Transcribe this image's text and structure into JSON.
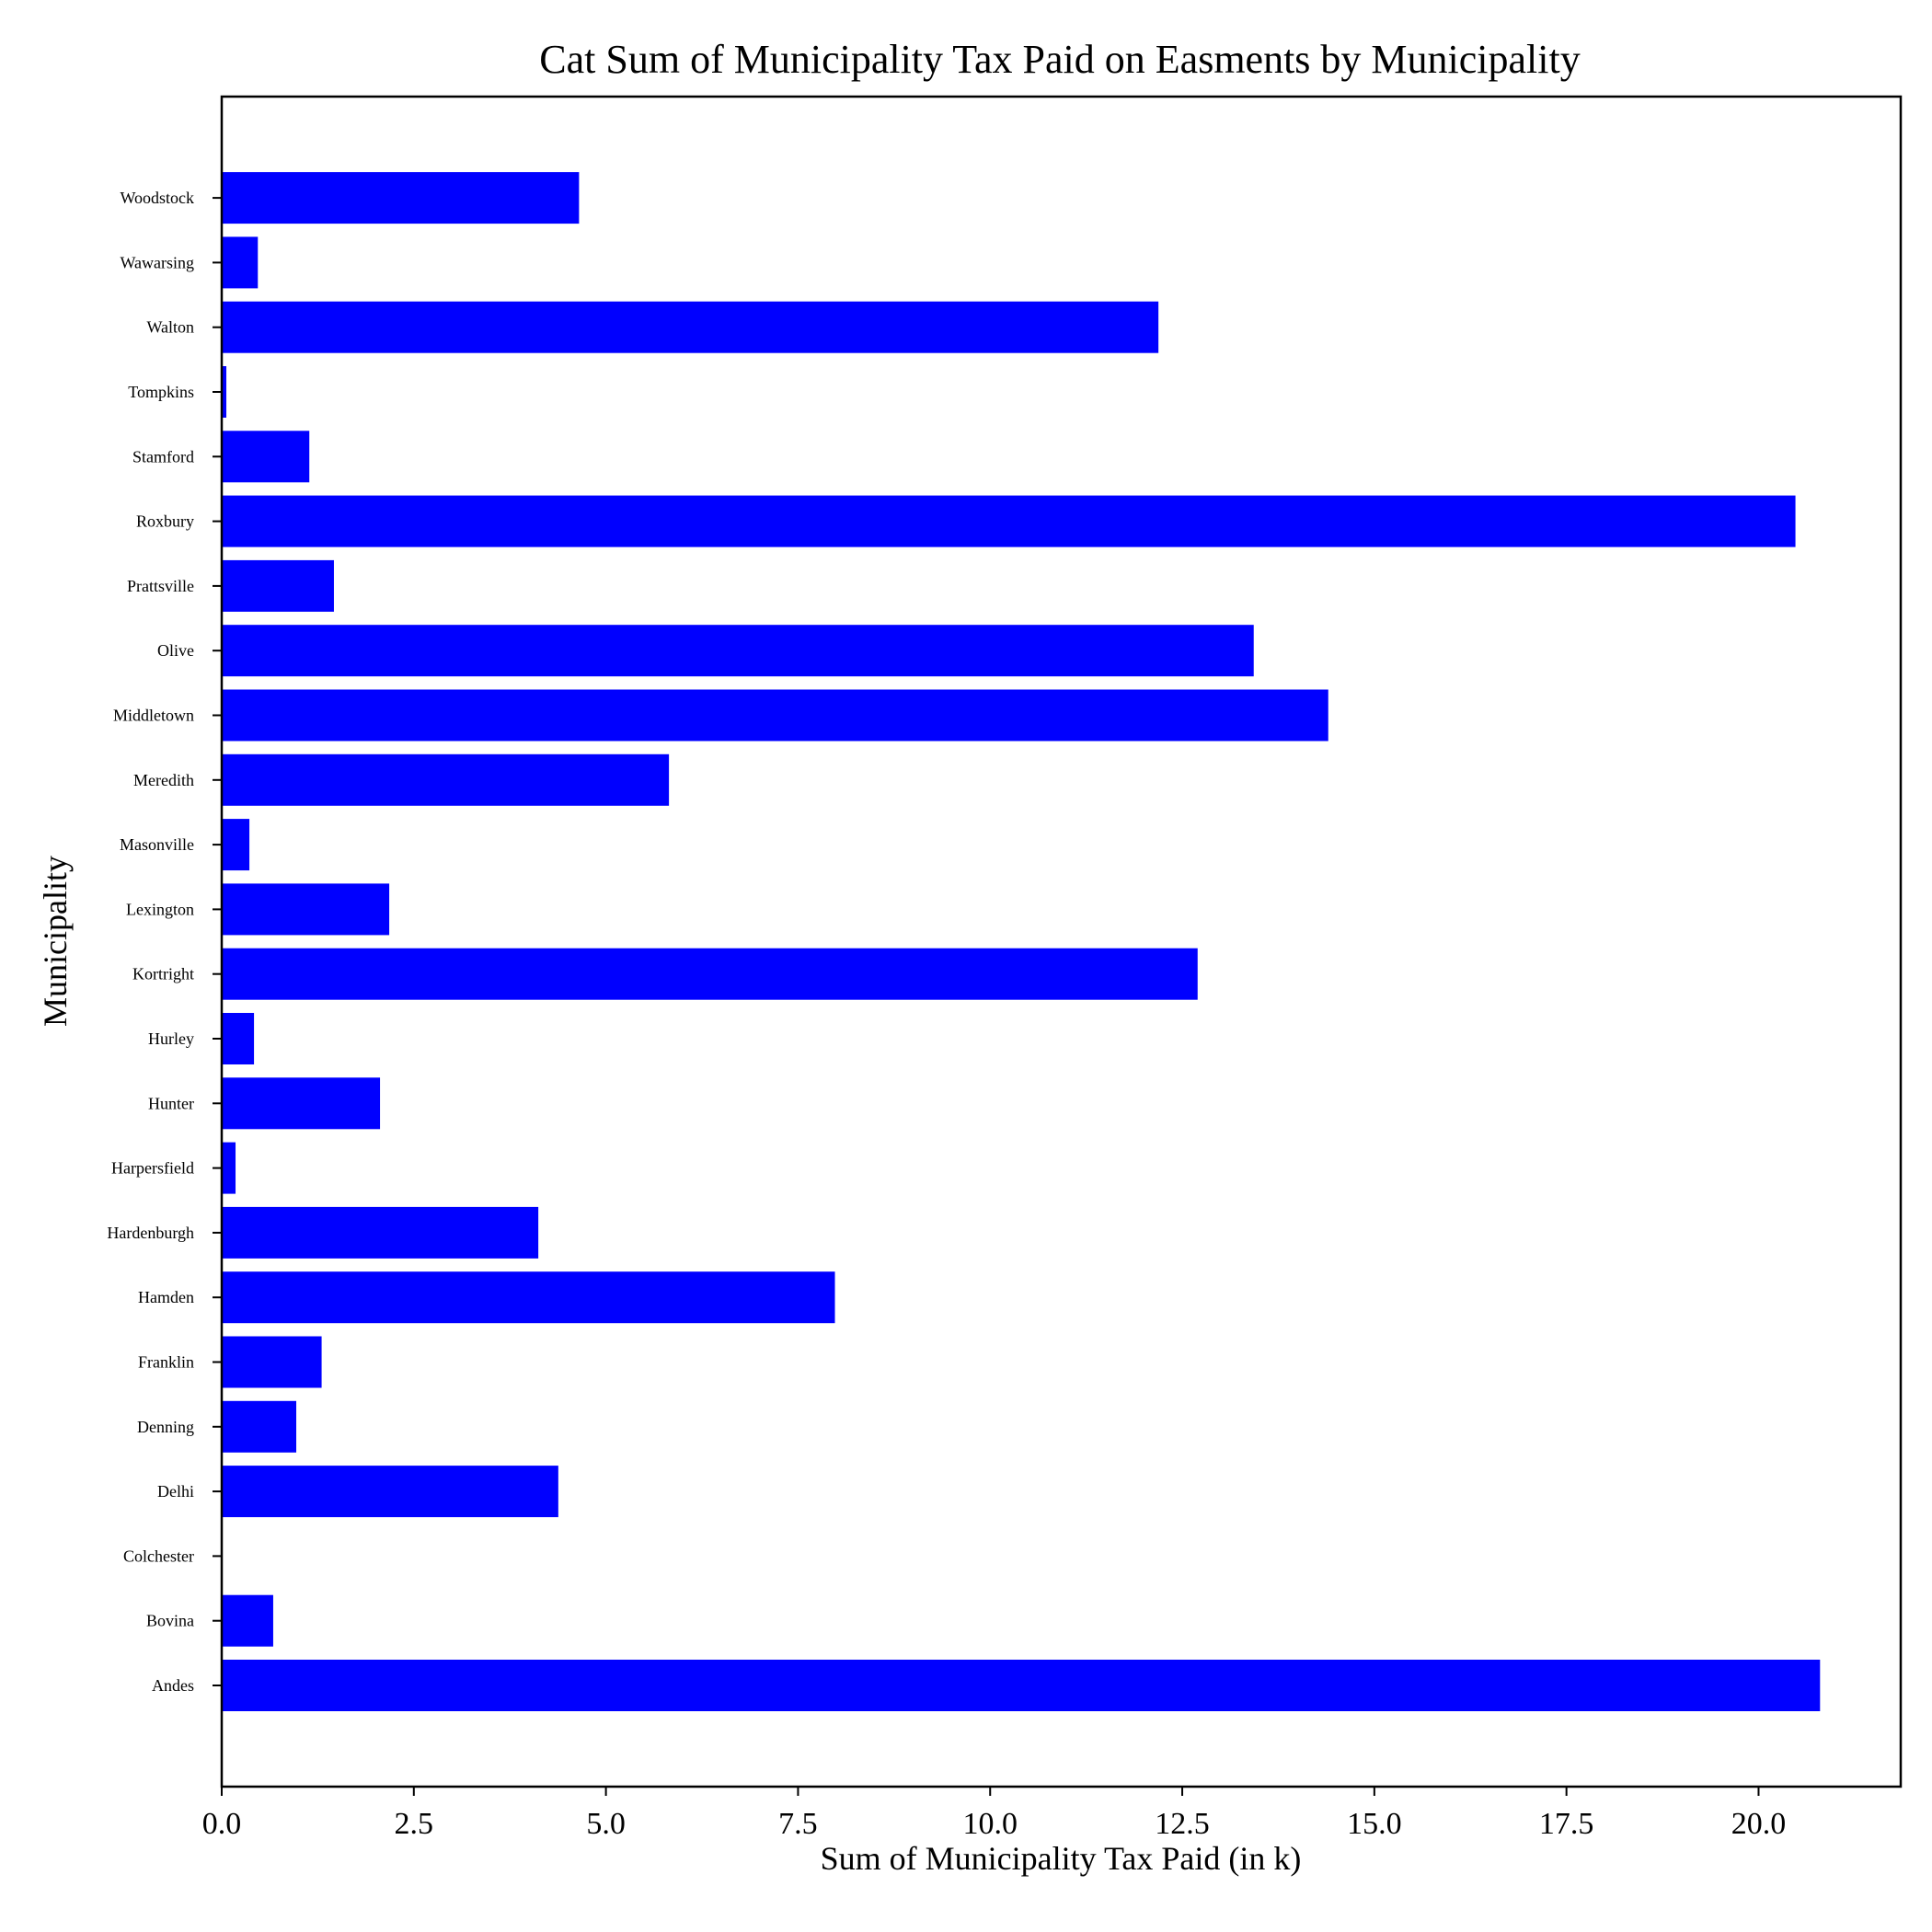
{
  "chart_data": {
    "type": "bar",
    "orientation": "horizontal",
    "title": "Cat Sum of Municipality Tax Paid on Easments by Municipality",
    "xlabel": "Sum of Municipality Tax Paid (in k)",
    "ylabel": "Municipality",
    "bar_color": "#0000ff",
    "xlim": [
      0,
      21.85
    ],
    "xticks": [
      0,
      2.5,
      5,
      7.5,
      10,
      12.5,
      15,
      17.5,
      20
    ],
    "xtick_labels": [
      "0.0",
      "2.5",
      "5.0",
      "7.5",
      "10.0",
      "12.5",
      "15.0",
      "17.5",
      "20.0"
    ],
    "grid": false,
    "legend": false,
    "categories": [
      "Andes",
      "Bovina",
      "Colchester",
      "Delhi",
      "Denning",
      "Franklin",
      "Hamden",
      "Hardenburgh",
      "Harpersfield",
      "Hunter",
      "Hurley",
      "Kortright",
      "Lexington",
      "Masonville",
      "Meredith",
      "Middletown",
      "Olive",
      "Prattsville",
      "Roxbury",
      "Stamford",
      "Tompkins",
      "Walton",
      "Wawarsing",
      "Woodstock"
    ],
    "values": [
      20.8,
      0.67,
      0.0,
      4.38,
      0.97,
      1.3,
      7.98,
      4.12,
      0.18,
      2.06,
      0.42,
      12.7,
      2.18,
      0.36,
      5.82,
      14.4,
      13.43,
      1.46,
      20.48,
      1.14,
      0.06,
      12.19,
      0.47,
      4.65
    ]
  }
}
